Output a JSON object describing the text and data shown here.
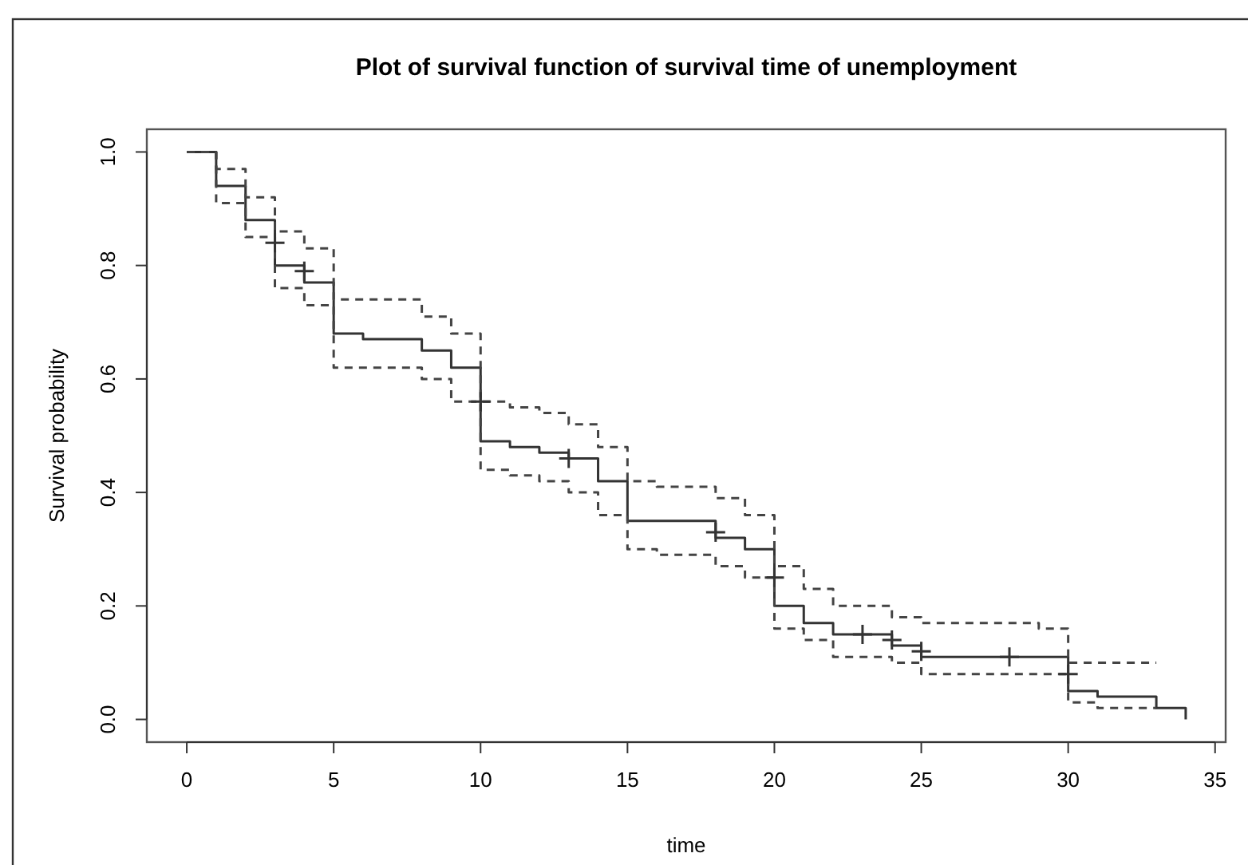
{
  "chart_data": {
    "type": "step",
    "title": "Plot of survival function of survival time of unemployment",
    "xlabel": "time",
    "ylabel": "Survival probability",
    "xlim": [
      -1.36,
      35.36
    ],
    "xticks": [
      0,
      5,
      10,
      15,
      20,
      25,
      30,
      35
    ],
    "ylim": [
      -0.04,
      1.04
    ],
    "yticks": [
      {
        "value": 0,
        "label": "0.0"
      },
      {
        "value": 0.2,
        "label": "0.2"
      },
      {
        "value": 0.4,
        "label": "0.4"
      },
      {
        "value": 0.6,
        "label": "0.6"
      },
      {
        "value": 0.8,
        "label": "0.8"
      },
      {
        "value": 1,
        "label": "1.0"
      }
    ],
    "grid": false,
    "series": [
      {
        "color": "#333333",
        "line_style": "solid",
        "x": [
          0,
          1,
          2,
          3,
          4,
          5,
          6,
          7,
          8,
          9,
          10,
          11,
          12,
          13,
          14,
          15,
          16,
          18,
          19,
          20,
          21,
          22,
          24,
          25,
          29,
          30,
          31,
          33,
          34
        ],
        "values": [
          1.0,
          0.94,
          0.88,
          0.8,
          0.77,
          0.68,
          0.67,
          0.67,
          0.65,
          0.62,
          0.49,
          0.48,
          0.47,
          0.46,
          0.42,
          0.35,
          0.35,
          0.32,
          0.3,
          0.2,
          0.17,
          0.15,
          0.13,
          0.11,
          0.11,
          0.05,
          0.04,
          0.02,
          0.0
        ]
      },
      {
        "type": "step",
        "color": "#444444",
        "line_style": "dashed",
        "x": [
          0,
          1,
          2,
          3,
          4,
          5,
          7,
          8,
          9,
          10,
          11,
          12,
          13,
          14,
          15,
          16,
          18,
          19,
          20,
          21,
          22,
          24,
          25,
          29,
          30,
          33
        ],
        "values": [
          1.0,
          0.97,
          0.92,
          0.86,
          0.83,
          0.74,
          0.74,
          0.71,
          0.68,
          0.56,
          0.55,
          0.54,
          0.52,
          0.48,
          0.42,
          0.41,
          0.39,
          0.36,
          0.27,
          0.23,
          0.2,
          0.18,
          0.17,
          0.16,
          0.1,
          0.1
        ]
      },
      {
        "type": "step",
        "color": "#444444",
        "line_style": "dashed",
        "x": [
          0,
          1,
          2,
          3,
          4,
          5,
          8,
          9,
          10,
          11,
          12,
          13,
          14,
          15,
          16,
          18,
          19,
          20,
          21,
          22,
          24,
          25,
          29,
          30,
          31,
          33
        ],
        "values": [
          1.0,
          0.91,
          0.85,
          0.76,
          0.73,
          0.62,
          0.6,
          0.56,
          0.44,
          0.43,
          0.42,
          0.4,
          0.36,
          0.3,
          0.29,
          0.27,
          0.25,
          0.16,
          0.14,
          0.11,
          0.1,
          0.08,
          0.08,
          0.03,
          0.02,
          0.02
        ]
      },
      {
        "type": "scatter",
        "color": "#333333",
        "marker": "cross",
        "x": [
          3,
          4,
          10,
          13,
          18,
          20,
          23,
          24,
          25,
          28,
          30
        ],
        "values": [
          0.84,
          0.79,
          0.56,
          0.46,
          0.33,
          0.25,
          0.15,
          0.14,
          0.12,
          0.11,
          0.08
        ]
      }
    ]
  }
}
